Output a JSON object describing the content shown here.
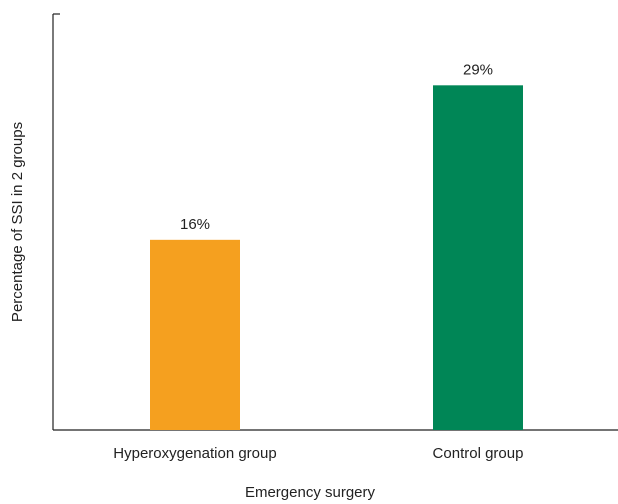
{
  "chart_data": {
    "type": "bar",
    "categories": [
      "Hyperoxygenation group",
      "Control group"
    ],
    "values": [
      16,
      29
    ],
    "value_labels": [
      "16%",
      "29%"
    ],
    "colors": [
      "#f5a01f",
      "#008656"
    ],
    "x_label": "Emergency surgery",
    "y_label": "Percentage of SSI in 2 groups",
    "ylim": [
      0,
      35
    ]
  }
}
